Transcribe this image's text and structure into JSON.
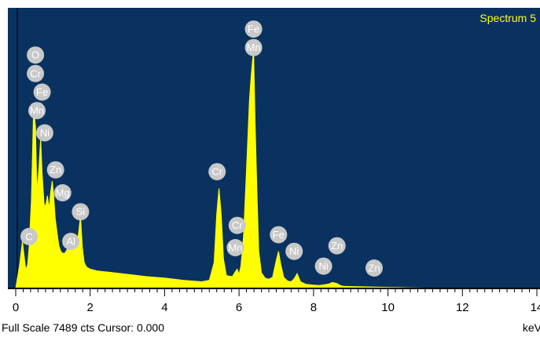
{
  "chart_data": {
    "type": "area",
    "title": "Spectrum 5",
    "xlabel": "keV",
    "ylabel": "",
    "xlim": [
      0,
      14
    ],
    "ylim": [
      0,
      7489
    ],
    "grid": false,
    "x_ticks": [
      0,
      2,
      4,
      6,
      8,
      10,
      12,
      14
    ],
    "x_tick_labels": [
      "0",
      "2",
      "4",
      "6",
      "8",
      "10",
      "12",
      "14"
    ],
    "series": [
      {
        "x": [
          0.0,
          0.1,
          0.18,
          0.27,
          0.32,
          0.36,
          0.42,
          0.48,
          0.53,
          0.57,
          0.62,
          0.67,
          0.71,
          0.76,
          0.8,
          0.85,
          0.9,
          0.94,
          0.98,
          1.02,
          1.06,
          1.11,
          1.16,
          1.21,
          1.26,
          1.32,
          1.38,
          1.44,
          1.48,
          1.53,
          1.58,
          1.63,
          1.69,
          1.74,
          1.79,
          1.84,
          1.9,
          2.0,
          2.2,
          2.5,
          3.0,
          3.5,
          4.0,
          4.5,
          5.0,
          5.2,
          5.33,
          5.4,
          5.46,
          5.52,
          5.58,
          5.66,
          5.74,
          5.82,
          5.9,
          5.95,
          6.0,
          6.05,
          6.12,
          6.2,
          6.28,
          6.33,
          6.39,
          6.43,
          6.48,
          6.53,
          6.6,
          6.7,
          6.8,
          6.9,
          7.0,
          7.06,
          7.12,
          7.2,
          7.3,
          7.4,
          7.48,
          7.56,
          7.65,
          7.8,
          8.0,
          8.15,
          8.3,
          8.42,
          8.5,
          8.6,
          8.65,
          8.72,
          8.8,
          9.0,
          9.5,
          10.0,
          10.5,
          11.0,
          11.1,
          12.0,
          13.0,
          14.0
        ],
        "values": [
          0,
          600,
          1260,
          500,
          650,
          1100,
          2350,
          4830,
          4380,
          2600,
          3200,
          4050,
          3100,
          2300,
          2200,
          2500,
          2150,
          2600,
          2900,
          2500,
          1900,
          1500,
          1150,
          1000,
          950,
          950,
          1050,
          1200,
          1350,
          1450,
          1250,
          1100,
          1500,
          1950,
          1100,
          700,
          580,
          520,
          470,
          440,
          380,
          320,
          280,
          220,
          180,
          220,
          700,
          2000,
          2700,
          2000,
          800,
          350,
          330,
          320,
          450,
          520,
          380,
          600,
          1400,
          3200,
          5100,
          5800,
          6450,
          4500,
          2600,
          1000,
          420,
          280,
          250,
          300,
          760,
          1000,
          650,
          300,
          200,
          180,
          260,
          400,
          180,
          110,
          90,
          80,
          100,
          120,
          160,
          140,
          120,
          80,
          60,
          50,
          40,
          30,
          20,
          10,
          0,
          0,
          0,
          0
        ]
      }
    ],
    "annotations": [
      {
        "text": "O",
        "x": 0.53,
        "y": 6300
      },
      {
        "text": "Cr",
        "x": 0.53,
        "y": 5800
      },
      {
        "text": "Fe",
        "x": 0.71,
        "y": 5300
      },
      {
        "text": "Mn",
        "x": 0.57,
        "y": 4800
      },
      {
        "text": "Ni",
        "x": 0.78,
        "y": 4200
      },
      {
        "text": "Zn",
        "x": 1.07,
        "y": 3200
      },
      {
        "text": "Mg",
        "x": 1.26,
        "y": 2580
      },
      {
        "text": "Si",
        "x": 1.74,
        "y": 2070
      },
      {
        "text": "C",
        "x": 0.36,
        "y": 1400
      },
      {
        "text": "Al",
        "x": 1.48,
        "y": 1270
      },
      {
        "text": "Cr",
        "x": 5.41,
        "y": 3150
      },
      {
        "text": "Cr",
        "x": 5.95,
        "y": 1700
      },
      {
        "text": "Mn",
        "x": 5.9,
        "y": 1100
      },
      {
        "text": "Fe",
        "x": 6.39,
        "y": 7000
      },
      {
        "text": "Mn",
        "x": 6.39,
        "y": 6500
      },
      {
        "text": "Fe",
        "x": 7.06,
        "y": 1450
      },
      {
        "text": "Ni",
        "x": 7.48,
        "y": 1000
      },
      {
        "text": "Ni",
        "x": 8.27,
        "y": 600
      },
      {
        "text": "Zn",
        "x": 8.63,
        "y": 1150
      },
      {
        "text": "Zn",
        "x": 9.63,
        "y": 550
      }
    ]
  },
  "footer": {
    "left": "Full Scale 7489 cts Cursor: 0.000",
    "right": "keV"
  },
  "colors": {
    "plot_background": "#0a3260",
    "spectrum_fill": "#ffff00",
    "label_bubble": "#c8c8c8"
  }
}
